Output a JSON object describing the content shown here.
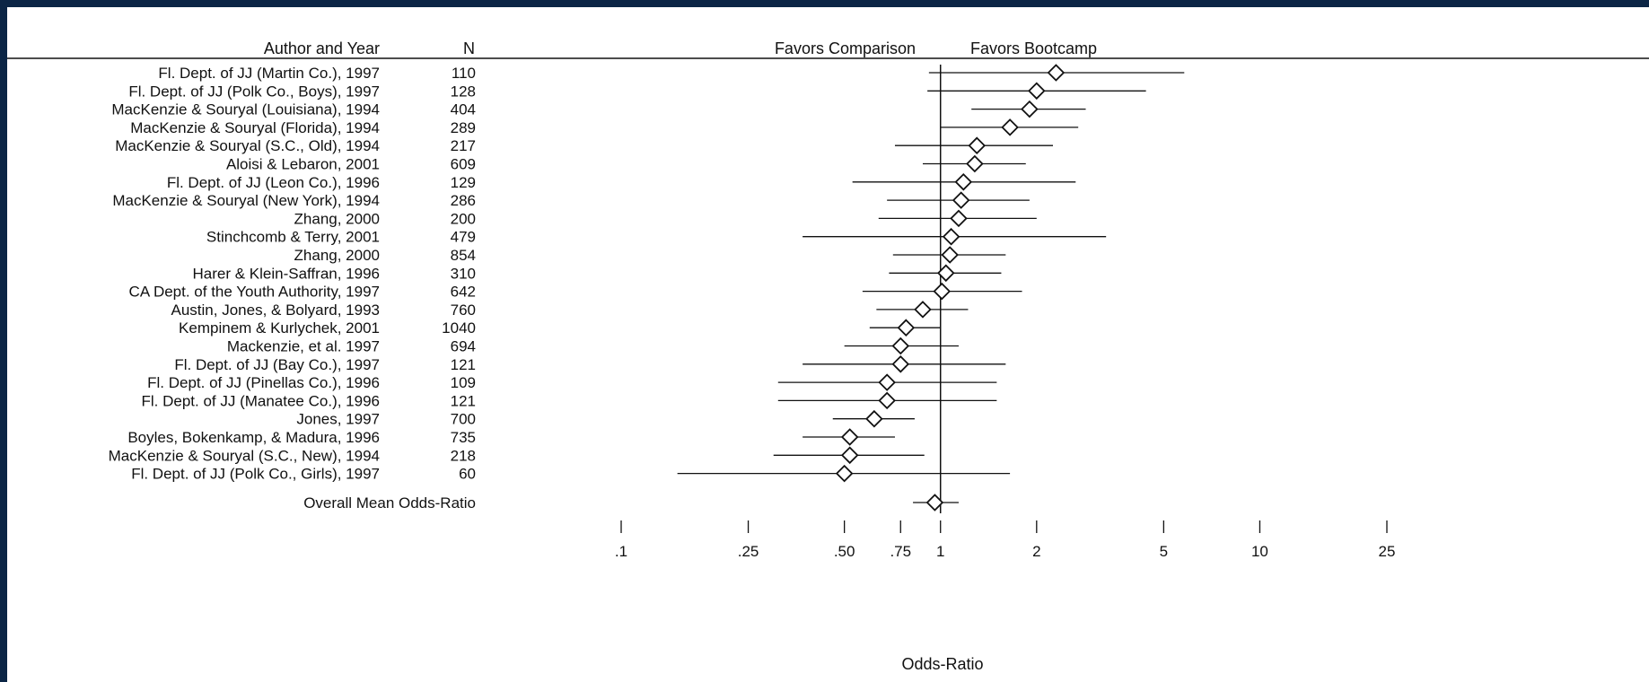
{
  "headers": {
    "study": "Author and Year",
    "n": "N",
    "favors_left": "Favors Comparison",
    "favors_right": "Favors Bootcamp"
  },
  "chart_data": {
    "type": "forest",
    "title": "",
    "xlabel": "Odds-Ratio",
    "xscale": "log",
    "xlim": [
      0.1,
      25
    ],
    "reference_line": 1,
    "xticks": [
      {
        "value": 0.1,
        "label": ".1"
      },
      {
        "value": 0.25,
        "label": ".25"
      },
      {
        "value": 0.5,
        "label": ".50"
      },
      {
        "value": 0.75,
        "label": ".75"
      },
      {
        "value": 1,
        "label": "1"
      },
      {
        "value": 2,
        "label": "2"
      },
      {
        "value": 5,
        "label": "5"
      },
      {
        "value": 10,
        "label": "10"
      },
      {
        "value": 25,
        "label": "25"
      }
    ],
    "studies": [
      {
        "label": "Fl. Dept. of JJ (Martin Co.), 1997",
        "n": "110",
        "or": 2.3,
        "lo": 0.92,
        "hi": 5.8
      },
      {
        "label": "Fl. Dept. of JJ (Polk Co., Boys), 1997",
        "n": "128",
        "or": 2.0,
        "lo": 0.91,
        "hi": 4.4
      },
      {
        "label": "MacKenzie & Souryal (Louisiana), 1994",
        "n": "404",
        "or": 1.9,
        "lo": 1.25,
        "hi": 2.85
      },
      {
        "label": "MacKenzie & Souryal (Florida), 1994",
        "n": "289",
        "or": 1.65,
        "lo": 1.0,
        "hi": 2.7
      },
      {
        "label": "MacKenzie & Souryal (S.C., Old), 1994",
        "n": "217",
        "or": 1.3,
        "lo": 0.72,
        "hi": 2.25
      },
      {
        "label": "Aloisi & Lebaron, 2001",
        "n": "609",
        "or": 1.28,
        "lo": 0.88,
        "hi": 1.85
      },
      {
        "label": "Fl. Dept. of JJ (Leon Co.), 1996",
        "n": "129",
        "or": 1.18,
        "lo": 0.53,
        "hi": 2.65
      },
      {
        "label": "MacKenzie & Souryal (New York), 1994",
        "n": "286",
        "or": 1.16,
        "lo": 0.68,
        "hi": 1.9
      },
      {
        "label": "Zhang, 2000",
        "n": "200",
        "or": 1.14,
        "lo": 0.64,
        "hi": 2.0
      },
      {
        "label": "Stinchcomb & Terry, 2001",
        "n": "479",
        "or": 1.08,
        "lo": 0.37,
        "hi": 3.3
      },
      {
        "label": "Zhang, 2000",
        "n": "854",
        "or": 1.07,
        "lo": 0.71,
        "hi": 1.6
      },
      {
        "label": "Harer & Klein-Saffran, 1996",
        "n": "310",
        "or": 1.04,
        "lo": 0.69,
        "hi": 1.55
      },
      {
        "label": "CA Dept. of the Youth Authority, 1997",
        "n": "642",
        "or": 1.01,
        "lo": 0.57,
        "hi": 1.8
      },
      {
        "label": "Austin, Jones, & Bolyard, 1993",
        "n": "760",
        "or": 0.88,
        "lo": 0.63,
        "hi": 1.22
      },
      {
        "label": "Kempinem & Kurlychek, 2001",
        "n": "1040",
        "or": 0.78,
        "lo": 0.6,
        "hi": 1.0
      },
      {
        "label": "Mackenzie, et al. 1997",
        "n": "694",
        "or": 0.75,
        "lo": 0.5,
        "hi": 1.14
      },
      {
        "label": "Fl. Dept. of JJ (Bay Co.), 1997",
        "n": "121",
        "or": 0.75,
        "lo": 0.37,
        "hi": 1.6
      },
      {
        "label": "Fl. Dept. of JJ (Pinellas Co.), 1996",
        "n": "109",
        "or": 0.68,
        "lo": 0.31,
        "hi": 1.5
      },
      {
        "label": "Fl. Dept. of JJ (Manatee Co.), 1996",
        "n": "121",
        "or": 0.68,
        "lo": 0.31,
        "hi": 1.5
      },
      {
        "label": "Jones, 1997",
        "n": "700",
        "or": 0.62,
        "lo": 0.46,
        "hi": 0.83
      },
      {
        "label": "Boyles, Bokenkamp, & Madura, 1996",
        "n": "735",
        "or": 0.52,
        "lo": 0.37,
        "hi": 0.72
      },
      {
        "label": "MacKenzie & Souryal (S.C., New), 1994",
        "n": "218",
        "or": 0.52,
        "lo": 0.3,
        "hi": 0.89
      },
      {
        "label": "Fl. Dept. of JJ (Polk Co., Girls), 1997",
        "n": "60",
        "or": 0.5,
        "lo": 0.15,
        "hi": 1.65
      }
    ],
    "overall": {
      "label": "Overall Mean Odds-Ratio",
      "or": 0.96,
      "lo": 0.82,
      "hi": 1.14
    }
  }
}
